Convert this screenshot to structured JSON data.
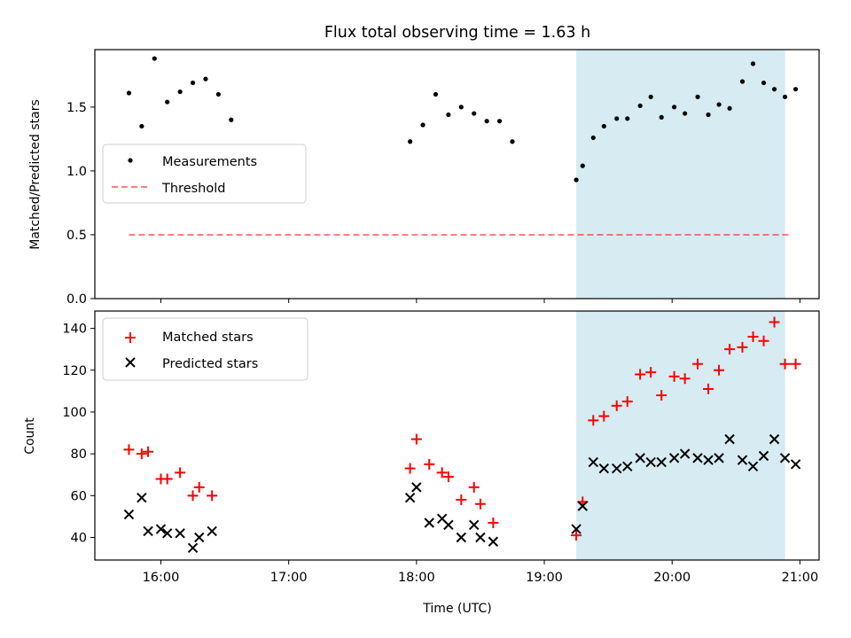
{
  "chart_data": [
    {
      "type": "scatter",
      "title": "Flux total observing time = 1.63 h",
      "xlabel": "",
      "ylabel": "Matched/Predicted stars",
      "xlim": [
        "15:29",
        "21:09"
      ],
      "ylim": [
        0,
        1.95
      ],
      "yticks": [
        0.0,
        0.5,
        1.0,
        1.5
      ],
      "ytick_labels": [
        "0.0",
        "0.5",
        "1.0",
        "1.5"
      ],
      "xticks": [
        "16:00",
        "17:00",
        "18:00",
        "19:00",
        "20:00",
        "21:00"
      ],
      "show_xtick_labels": false,
      "grid": false,
      "legend_position": "center-left",
      "shaded_span": {
        "x": [
          "19:15",
          "20:53"
        ],
        "color": "#add8e6"
      },
      "series": [
        {
          "name": "Measurements",
          "marker": "dot",
          "color": "#000000",
          "points": [
            [
              "15:45",
              1.61
            ],
            [
              "15:51",
              1.35
            ],
            [
              "15:57",
              1.88
            ],
            [
              "16:03",
              1.54
            ],
            [
              "16:09",
              1.62
            ],
            [
              "16:15",
              1.69
            ],
            [
              "16:21",
              1.72
            ],
            [
              "16:27",
              1.6
            ],
            [
              "16:33",
              1.4
            ],
            [
              "17:57",
              1.23
            ],
            [
              "18:03",
              1.36
            ],
            [
              "18:09",
              1.6
            ],
            [
              "18:15",
              1.44
            ],
            [
              "18:21",
              1.5
            ],
            [
              "18:27",
              1.45
            ],
            [
              "18:33",
              1.39
            ],
            [
              "18:39",
              1.39
            ],
            [
              "18:45",
              1.23
            ],
            [
              "19:15",
              0.93
            ],
            [
              "19:18",
              1.04
            ],
            [
              "19:23",
              1.26
            ],
            [
              "19:28",
              1.35
            ],
            [
              "19:34",
              1.41
            ],
            [
              "19:39",
              1.41
            ],
            [
              "19:45",
              1.51
            ],
            [
              "19:50",
              1.58
            ],
            [
              "19:55",
              1.42
            ],
            [
              "20:01",
              1.5
            ],
            [
              "20:06",
              1.45
            ],
            [
              "20:12",
              1.58
            ],
            [
              "20:17",
              1.44
            ],
            [
              "20:22",
              1.52
            ],
            [
              "20:27",
              1.49
            ],
            [
              "20:33",
              1.7
            ],
            [
              "20:38",
              1.84
            ],
            [
              "20:43",
              1.69
            ],
            [
              "20:48",
              1.64
            ],
            [
              "20:53",
              1.58
            ],
            [
              "20:58",
              1.64
            ]
          ]
        },
        {
          "name": "Threshold",
          "type": "line",
          "style": "dashed",
          "color": "#ff0000",
          "opacity": 0.5,
          "points": [
            [
              "15:45",
              0.5
            ],
            [
              "20:56",
              0.5
            ]
          ]
        }
      ]
    },
    {
      "type": "scatter",
      "title": "",
      "xlabel": "Time (UTC)",
      "ylabel": "Count",
      "xlim": [
        "15:29",
        "21:09"
      ],
      "ylim": [
        29.2,
        148.3
      ],
      "yticks": [
        40,
        60,
        80,
        100,
        120,
        140
      ],
      "ytick_labels": [
        "40",
        "60",
        "80",
        "100",
        "120",
        "140"
      ],
      "xticks": [
        "16:00",
        "17:00",
        "18:00",
        "19:00",
        "20:00",
        "21:00"
      ],
      "show_xtick_labels": true,
      "grid": false,
      "legend_position": "top-left",
      "shaded_span": {
        "x": [
          "19:15",
          "20:53"
        ],
        "color": "#add8e6"
      },
      "series": [
        {
          "name": "Matched stars",
          "marker": "plus",
          "color": "#ff0000",
          "points": [
            [
              "15:45",
              82
            ],
            [
              "15:51",
              80
            ],
            [
              "15:54",
              81
            ],
            [
              "16:00",
              68
            ],
            [
              "16:03",
              68
            ],
            [
              "16:09",
              71
            ],
            [
              "16:15",
              60
            ],
            [
              "16:18",
              64
            ],
            [
              "16:24",
              60
            ],
            [
              "17:57",
              73
            ],
            [
              "18:00",
              87
            ],
            [
              "18:06",
              75
            ],
            [
              "18:12",
              71
            ],
            [
              "18:15",
              69
            ],
            [
              "18:21",
              58
            ],
            [
              "18:27",
              64
            ],
            [
              "18:30",
              56
            ],
            [
              "18:36",
              47
            ],
            [
              "19:15",
              41
            ],
            [
              "19:18",
              57
            ],
            [
              "19:23",
              96
            ],
            [
              "19:28",
              98
            ],
            [
              "19:34",
              103
            ],
            [
              "19:39",
              105
            ],
            [
              "19:45",
              118
            ],
            [
              "19:50",
              119
            ],
            [
              "19:55",
              108
            ],
            [
              "20:01",
              117
            ],
            [
              "20:06",
              116
            ],
            [
              "20:12",
              123
            ],
            [
              "20:17",
              111
            ],
            [
              "20:22",
              120
            ],
            [
              "20:27",
              130
            ],
            [
              "20:33",
              131
            ],
            [
              "20:38",
              136
            ],
            [
              "20:43",
              134
            ],
            [
              "20:48",
              143
            ],
            [
              "20:53",
              123
            ],
            [
              "20:58",
              123
            ]
          ]
        },
        {
          "name": "Predicted stars",
          "marker": "x",
          "color": "#000000",
          "points": [
            [
              "15:45",
              51
            ],
            [
              "15:51",
              59
            ],
            [
              "15:54",
              43
            ],
            [
              "16:00",
              44
            ],
            [
              "16:03",
              42
            ],
            [
              "16:09",
              42
            ],
            [
              "16:15",
              35
            ],
            [
              "16:18",
              40
            ],
            [
              "16:24",
              43
            ],
            [
              "17:57",
              59
            ],
            [
              "18:00",
              64
            ],
            [
              "18:06",
              47
            ],
            [
              "18:12",
              49
            ],
            [
              "18:15",
              46
            ],
            [
              "18:21",
              40
            ],
            [
              "18:27",
              46
            ],
            [
              "18:30",
              40
            ],
            [
              "18:36",
              38
            ],
            [
              "19:15",
              44
            ],
            [
              "19:18",
              55
            ],
            [
              "19:23",
              76
            ],
            [
              "19:28",
              73
            ],
            [
              "19:34",
              73
            ],
            [
              "19:39",
              74
            ],
            [
              "19:45",
              78
            ],
            [
              "19:50",
              76
            ],
            [
              "19:55",
              76
            ],
            [
              "20:01",
              78
            ],
            [
              "20:06",
              80
            ],
            [
              "20:12",
              78
            ],
            [
              "20:17",
              77
            ],
            [
              "20:22",
              78
            ],
            [
              "20:27",
              87
            ],
            [
              "20:33",
              77
            ],
            [
              "20:38",
              74
            ],
            [
              "20:43",
              79
            ],
            [
              "20:48",
              87
            ],
            [
              "20:53",
              78
            ],
            [
              "20:58",
              75
            ]
          ]
        }
      ]
    }
  ]
}
